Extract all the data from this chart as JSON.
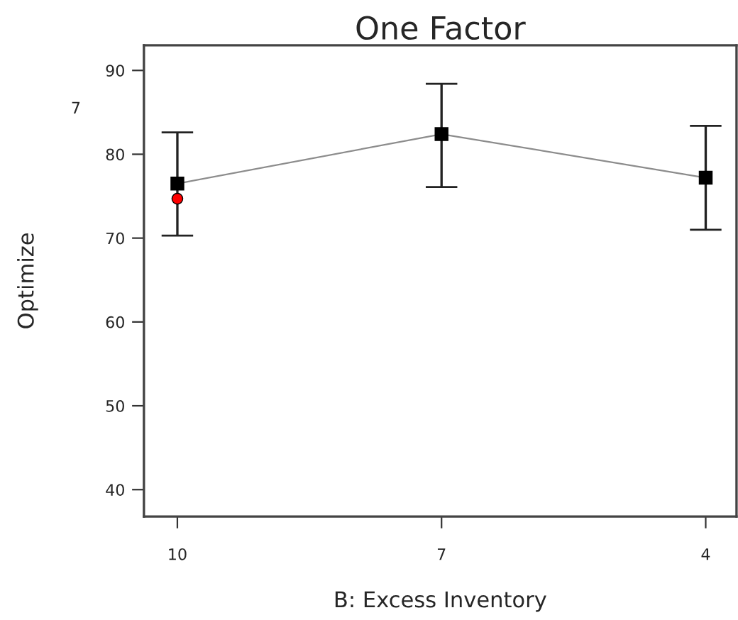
{
  "chart_data": {
    "type": "line",
    "title": "One Factor",
    "xlabel": "B: Excess Inventory",
    "ylabel": "Optimize",
    "annotations": [
      "7"
    ],
    "x": [
      10,
      7,
      4
    ],
    "series": [
      {
        "color": "#000000",
        "values": [
          76.5,
          82.4,
          77.2
        ],
        "errors": [
          [
            70.3,
            82.6
          ],
          [
            76.1,
            88.4
          ],
          [
            71.0,
            83.4
          ]
        ],
        "marker": "square"
      },
      {
        "type": "scatter",
        "color": "#ff0000",
        "x": [
          10
        ],
        "values": [
          74.7
        ],
        "marker": "circle"
      }
    ],
    "xlim": [
      10.38,
      3.65
    ],
    "xticks": [
      10,
      7,
      4
    ],
    "ylim": [
      36.8,
      93.0
    ],
    "yticks": [
      40,
      50,
      60,
      70,
      80,
      90
    ],
    "grid": false,
    "legend": false
  }
}
